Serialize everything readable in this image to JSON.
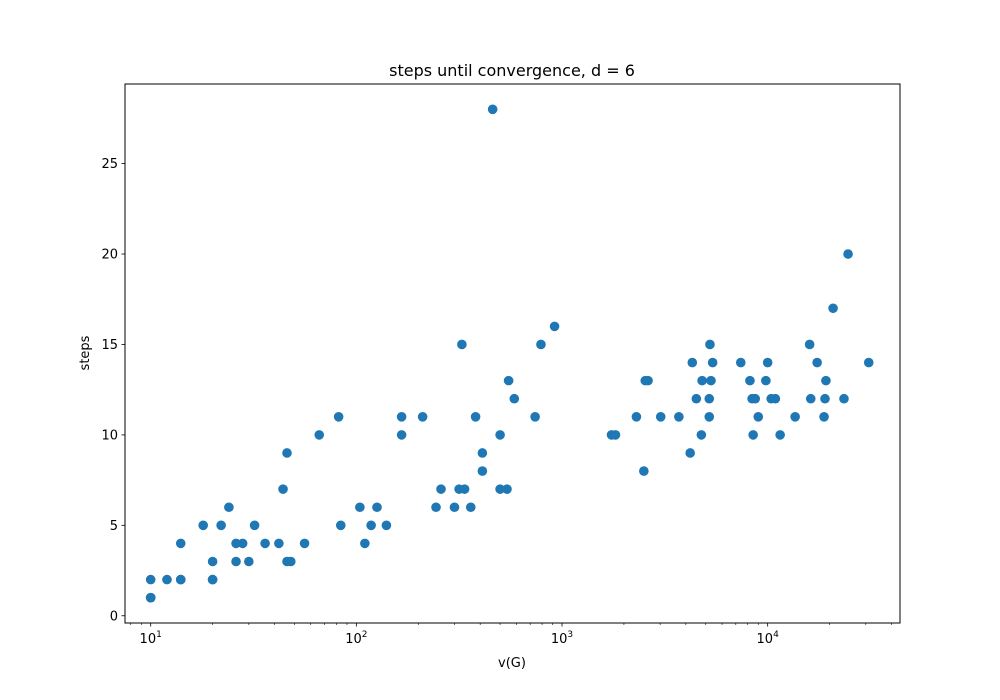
{
  "chart_data": {
    "type": "scatter",
    "title": "steps until convergence, d = 6",
    "xlabel": "v(G)",
    "ylabel": "steps",
    "xscale": "log",
    "xlim": [
      7.5,
      44000
    ],
    "ylim": [
      -0.4,
      29.4
    ],
    "yticks": [
      0,
      5,
      10,
      15,
      20,
      25
    ],
    "xticks": [
      {
        "value": 10,
        "base": "10",
        "exp": "1"
      },
      {
        "value": 100,
        "base": "10",
        "exp": "2"
      },
      {
        "value": 1000,
        "base": "10",
        "exp": "3"
      },
      {
        "value": 10000,
        "base": "10",
        "exp": "4"
      }
    ],
    "grid": false,
    "marker_color": "#1f77b4",
    "points": [
      [
        10,
        1
      ],
      [
        10,
        1
      ],
      [
        10,
        1
      ],
      [
        10,
        2
      ],
      [
        12,
        2
      ],
      [
        14,
        2
      ],
      [
        14,
        2
      ],
      [
        14,
        4
      ],
      [
        18,
        5
      ],
      [
        20,
        3
      ],
      [
        20,
        2
      ],
      [
        20,
        2
      ],
      [
        22,
        5
      ],
      [
        24,
        6
      ],
      [
        26,
        3
      ],
      [
        26,
        4
      ],
      [
        28,
        4
      ],
      [
        30,
        3
      ],
      [
        32,
        5
      ],
      [
        36,
        4
      ],
      [
        42,
        4
      ],
      [
        44,
        7
      ],
      [
        46,
        3
      ],
      [
        46,
        9
      ],
      [
        48,
        3
      ],
      [
        56,
        4
      ],
      [
        66,
        10
      ],
      [
        82,
        11
      ],
      [
        84,
        5
      ],
      [
        104,
        6
      ],
      [
        110,
        4
      ],
      [
        118,
        5
      ],
      [
        126,
        6
      ],
      [
        140,
        5
      ],
      [
        166,
        11
      ],
      [
        166,
        10
      ],
      [
        210,
        11
      ],
      [
        244,
        6
      ],
      [
        258,
        7
      ],
      [
        300,
        6
      ],
      [
        316,
        7
      ],
      [
        326,
        15
      ],
      [
        336,
        7
      ],
      [
        360,
        6
      ],
      [
        380,
        11
      ],
      [
        410,
        9
      ],
      [
        410,
        8
      ],
      [
        460,
        28
      ],
      [
        500,
        7
      ],
      [
        500,
        10
      ],
      [
        540,
        7
      ],
      [
        550,
        13
      ],
      [
        586,
        12
      ],
      [
        740,
        11
      ],
      [
        790,
        15
      ],
      [
        920,
        16
      ],
      [
        1740,
        10
      ],
      [
        1820,
        10
      ],
      [
        2300,
        11
      ],
      [
        2500,
        8
      ],
      [
        2540,
        13
      ],
      [
        2620,
        13
      ],
      [
        3020,
        11
      ],
      [
        3700,
        11
      ],
      [
        4200,
        9
      ],
      [
        4300,
        14
      ],
      [
        4500,
        12
      ],
      [
        4760,
        10
      ],
      [
        4800,
        13
      ],
      [
        5200,
        11
      ],
      [
        5200,
        12
      ],
      [
        5240,
        15
      ],
      [
        5300,
        13
      ],
      [
        5400,
        14
      ],
      [
        7400,
        14
      ],
      [
        8200,
        13
      ],
      [
        8400,
        12
      ],
      [
        8500,
        10
      ],
      [
        8700,
        12
      ],
      [
        9000,
        11
      ],
      [
        9800,
        13
      ],
      [
        10000,
        14
      ],
      [
        10400,
        12
      ],
      [
        10900,
        12
      ],
      [
        11500,
        10
      ],
      [
        13600,
        11
      ],
      [
        16000,
        15
      ],
      [
        16200,
        12
      ],
      [
        17400,
        14
      ],
      [
        18800,
        11
      ],
      [
        19000,
        12
      ],
      [
        19200,
        13
      ],
      [
        20800,
        17
      ],
      [
        23500,
        12
      ],
      [
        24600,
        20
      ],
      [
        31000,
        14
      ]
    ]
  }
}
